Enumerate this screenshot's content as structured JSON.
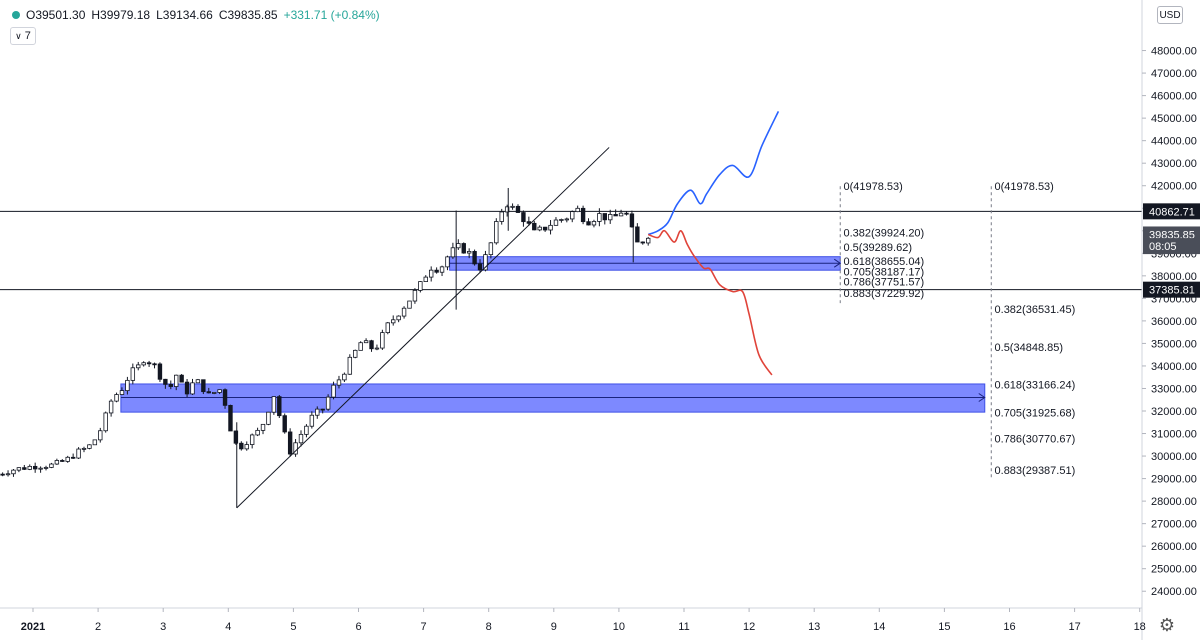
{
  "legend": {
    "open": "O39501.30",
    "high": "H39979.18",
    "low": "L39134.66",
    "close": "C39835.85",
    "change": "+331.71 (+0.84%)"
  },
  "indicator_toggle": "7",
  "currency": "USD",
  "colors": {
    "up": "#26a69a",
    "candle": "#131722",
    "zone": "#5c6bff",
    "bull_path": "#2962ff",
    "bear_path": "#e0443a"
  },
  "icons": [
    "settings-gear-icon",
    "status-dot-icon",
    "chevron-down-icon"
  ],
  "chart_data": {
    "type": "candlestick",
    "x_axis": {
      "ticks": [
        {
          "label": "2021",
          "day": 0
        },
        {
          "label": "2",
          "day": 1
        },
        {
          "label": "3",
          "day": 2
        },
        {
          "label": "4",
          "day": 3
        },
        {
          "label": "5",
          "day": 4
        },
        {
          "label": "6",
          "day": 5
        },
        {
          "label": "7",
          "day": 6
        },
        {
          "label": "8",
          "day": 7
        },
        {
          "label": "9",
          "day": 8
        },
        {
          "label": "10",
          "day": 9
        },
        {
          "label": "11",
          "day": 10
        },
        {
          "label": "12",
          "day": 11
        },
        {
          "label": "13",
          "day": 12
        },
        {
          "label": "14",
          "day": 13
        },
        {
          "label": "15",
          "day": 14
        },
        {
          "label": "16",
          "day": 15
        },
        {
          "label": "17",
          "day": 16
        },
        {
          "label": "18",
          "day": 17
        }
      ]
    },
    "y_axis": {
      "range": [
        23300,
        49800
      ],
      "ticks": [
        "48000.00",
        "47000.00",
        "46000.00",
        "45000.00",
        "44000.00",
        "43000.00",
        "42000.00",
        "41000.00",
        "40000.00",
        "39000.00",
        "38000.00",
        "37000.00",
        "36000.00",
        "35000.00",
        "34000.00",
        "33000.00",
        "32000.00",
        "31000.00",
        "30000.00",
        "29000.00",
        "28000.00",
        "27000.00",
        "26000.00",
        "25000.00",
        "24000.00"
      ]
    },
    "price_labels": [
      {
        "value": 40862.71,
        "text": "40862.71",
        "style": "dark"
      },
      {
        "value": 39835.85,
        "text": "39835.85",
        "style": "grey"
      },
      {
        "value": 39320,
        "text": "08:05",
        "style": "grey"
      },
      {
        "value": 37385.81,
        "text": "37385.81",
        "style": "dark"
      }
    ],
    "horizontal_lines": [
      40862.71,
      37385.81
    ],
    "close_path": [
      [
        -0.55,
        29200
      ],
      [
        -0.3,
        29400
      ],
      [
        0.0,
        29550
      ],
      [
        0.3,
        29600
      ],
      [
        0.5,
        29800
      ],
      [
        0.7,
        30200
      ],
      [
        0.85,
        30400
      ],
      [
        1.0,
        30900
      ],
      [
        1.12,
        31800
      ],
      [
        1.22,
        32600
      ],
      [
        1.35,
        32900
      ],
      [
        1.5,
        33700
      ],
      [
        1.6,
        33900
      ],
      [
        1.7,
        34300
      ],
      [
        1.85,
        34100
      ],
      [
        2.0,
        33300
      ],
      [
        2.1,
        33000
      ],
      [
        2.2,
        33600
      ],
      [
        2.35,
        32800
      ],
      [
        2.5,
        33400
      ],
      [
        2.7,
        32700
      ],
      [
        2.9,
        33000
      ],
      [
        3.05,
        31000
      ],
      [
        3.15,
        30300
      ],
      [
        3.3,
        30700
      ],
      [
        3.5,
        31200
      ],
      [
        3.7,
        32700
      ],
      [
        3.85,
        31100
      ],
      [
        3.95,
        30200
      ],
      [
        4.1,
        30900
      ],
      [
        4.3,
        31800
      ],
      [
        4.45,
        32100
      ],
      [
        4.6,
        33000
      ],
      [
        4.75,
        33600
      ],
      [
        4.9,
        34400
      ],
      [
        5.05,
        35100
      ],
      [
        5.25,
        34700
      ],
      [
        5.45,
        35800
      ],
      [
        5.6,
        36300
      ],
      [
        5.8,
        37000
      ],
      [
        5.95,
        37600
      ],
      [
        6.1,
        38400
      ],
      [
        6.25,
        38300
      ],
      [
        6.4,
        39000
      ],
      [
        6.55,
        39300
      ],
      [
        6.7,
        39000
      ],
      [
        6.85,
        38300
      ],
      [
        7.0,
        39100
      ],
      [
        7.1,
        40100
      ],
      [
        7.25,
        41300
      ],
      [
        7.4,
        40900
      ],
      [
        7.55,
        40500
      ],
      [
        7.7,
        39900
      ],
      [
        7.85,
        40100
      ],
      [
        8.0,
        40400
      ],
      [
        8.2,
        40600
      ],
      [
        8.35,
        41000
      ],
      [
        8.5,
        40400
      ],
      [
        8.7,
        40700
      ],
      [
        8.9,
        40500
      ],
      [
        9.05,
        40900
      ],
      [
        9.15,
        40600
      ],
      [
        9.25,
        39400
      ],
      [
        9.35,
        39500
      ],
      [
        9.45,
        39835.85
      ]
    ],
    "key_wicks": [
      {
        "day": 3.13,
        "low": 27700,
        "high": 31500
      },
      {
        "day": 6.5,
        "low": 36500,
        "high": 40900
      },
      {
        "day": 7.3,
        "low": 40000,
        "high": 41900
      },
      {
        "day": 9.22,
        "low": 38600,
        "high": 40500
      }
    ],
    "trendline": {
      "from": [
        3.13,
        27700
      ],
      "to": [
        8.85,
        43700
      ]
    },
    "demand_zones": [
      {
        "x_from": 6.4,
        "x_to": 12.4,
        "top": 38850,
        "bottom": 38250,
        "mid": 38560
      },
      {
        "x_from": 1.35,
        "x_to": 14.62,
        "top": 33200,
        "bottom": 31950,
        "mid": 32600
      }
    ],
    "fib_levels": [
      {
        "x": 12.4,
        "label_x": 12.45,
        "levels": [
          {
            "label": "0(41978.53)",
            "value": 41978.53
          },
          {
            "label": "0.382(39924.20)",
            "value": 39924.2
          },
          {
            "label": "0.5(39289.62)",
            "value": 39289.62
          },
          {
            "label": "0.618(38655.04)",
            "value": 38655.04
          },
          {
            "label": "0.705(38187.17)",
            "value": 38187.17
          },
          {
            "label": "0.786(37751.57)",
            "value": 37751.57
          },
          {
            "label": "0.883(37229.92)",
            "value": 37229.92
          }
        ]
      },
      {
        "x": 14.72,
        "label_x": 14.77,
        "levels": [
          {
            "label": "0(41978.53)",
            "value": 41978.53
          },
          {
            "label": "0.382(36531.45)",
            "value": 36531.45
          },
          {
            "label": "0.5(34848.85)",
            "value": 34848.85
          },
          {
            "label": "0.618(33166.24)",
            "value": 33166.24
          },
          {
            "label": "0.705(31925.68)",
            "value": 31925.68
          },
          {
            "label": "0.786(30770.67)",
            "value": 30770.67
          },
          {
            "label": "0.883(29387.51)",
            "value": 29387.51
          }
        ]
      }
    ],
    "projections": [
      {
        "name": "bullish",
        "color": "#2962ff",
        "points": [
          [
            9.45,
            39835
          ],
          [
            9.6,
            40000
          ],
          [
            9.75,
            40350
          ],
          [
            9.9,
            41200
          ],
          [
            10.1,
            41800
          ],
          [
            10.25,
            41200
          ],
          [
            10.35,
            41650
          ],
          [
            10.55,
            42500
          ],
          [
            10.75,
            42900
          ],
          [
            11.0,
            42400
          ],
          [
            11.2,
            43800
          ],
          [
            11.45,
            45300
          ]
        ]
      },
      {
        "name": "bearish",
        "color": "#e0443a",
        "points": [
          [
            9.45,
            39835
          ],
          [
            9.6,
            39700
          ],
          [
            9.7,
            40000
          ],
          [
            9.85,
            39500
          ],
          [
            9.95,
            40000
          ],
          [
            10.05,
            39400
          ],
          [
            10.15,
            38900
          ],
          [
            10.3,
            38350
          ],
          [
            10.4,
            38300
          ],
          [
            10.55,
            37600
          ],
          [
            10.75,
            37300
          ],
          [
            10.9,
            37300
          ],
          [
            11.0,
            36300
          ],
          [
            11.15,
            34500
          ],
          [
            11.35,
            33600
          ]
        ]
      }
    ]
  }
}
